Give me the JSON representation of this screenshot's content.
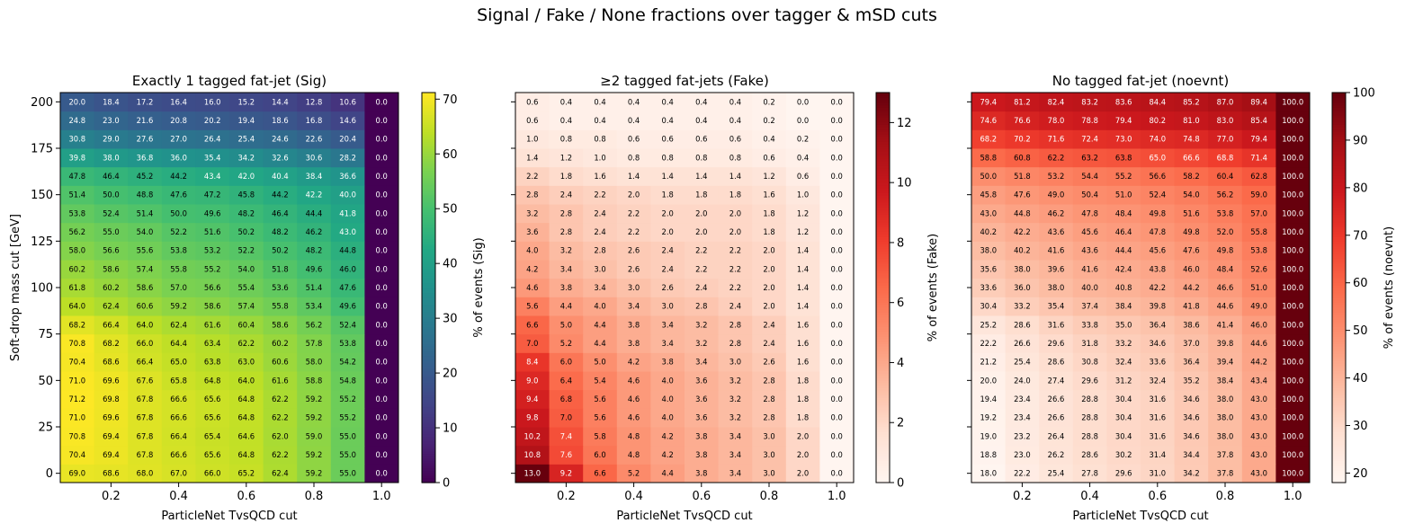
{
  "suptitle": "Signal / Fake / None fractions over tagger & mSD cuts",
  "chart_data": [
    {
      "type": "heatmap",
      "title": "Exactly 1 tagged fat-jet (Sig)",
      "xlabel": "ParticleNet TvsQCD cut",
      "ylabel": "Soft-drop mass cut [GeV]",
      "colorbar_label": "% of events (Sig)",
      "colormap": "viridis",
      "vmin": 0,
      "vmax": 71.2,
      "colorbar_ticks": [
        0,
        10,
        20,
        30,
        40,
        50,
        60,
        70
      ],
      "x": [
        0.1,
        0.2,
        0.3,
        0.4,
        0.5,
        0.6,
        0.7,
        0.8,
        0.9,
        1.0
      ],
      "y": [
        0,
        10,
        20,
        30,
        40,
        50,
        60,
        70,
        80,
        90,
        100,
        110,
        120,
        130,
        140,
        150,
        160,
        170,
        180,
        190,
        200
      ],
      "xticks": [
        "0.2",
        "0.4",
        "0.6",
        "0.8",
        "1.0"
      ],
      "yticks": [
        "0",
        "25",
        "50",
        "75",
        "100",
        "125",
        "150",
        "175",
        "200"
      ],
      "z": [
        [
          69.0,
          68.6,
          68.0,
          67.0,
          66.0,
          65.2,
          62.4,
          59.2,
          55.0,
          0.0
        ],
        [
          70.4,
          69.4,
          67.8,
          66.6,
          65.6,
          64.8,
          62.2,
          59.2,
          55.0,
          0.0
        ],
        [
          70.8,
          69.4,
          67.8,
          66.4,
          65.4,
          64.6,
          62.0,
          59.0,
          55.0,
          0.0
        ],
        [
          71.0,
          69.6,
          67.8,
          66.6,
          65.6,
          64.8,
          62.2,
          59.2,
          55.2,
          0.0
        ],
        [
          71.2,
          69.8,
          67.8,
          66.6,
          65.6,
          64.8,
          62.2,
          59.2,
          55.2,
          0.0
        ],
        [
          71.0,
          69.6,
          67.6,
          65.8,
          64.8,
          64.0,
          61.6,
          58.8,
          54.8,
          0.0
        ],
        [
          70.4,
          68.6,
          66.4,
          65.0,
          63.8,
          63.0,
          60.6,
          58.0,
          54.2,
          0.0
        ],
        [
          70.8,
          68.2,
          66.0,
          64.4,
          63.4,
          62.2,
          60.2,
          57.8,
          53.8,
          0.0
        ],
        [
          68.2,
          66.4,
          64.0,
          62.4,
          61.6,
          60.4,
          58.6,
          56.2,
          52.4,
          0.0
        ],
        [
          64.0,
          62.4,
          60.6,
          59.2,
          58.6,
          57.4,
          55.8,
          53.4,
          49.6,
          0.0
        ],
        [
          61.8,
          60.2,
          58.6,
          57.0,
          56.6,
          55.4,
          53.6,
          51.4,
          47.6,
          0.0
        ],
        [
          60.2,
          58.6,
          57.4,
          55.8,
          55.2,
          54.0,
          51.8,
          49.6,
          46.0,
          0.0
        ],
        [
          58.0,
          56.6,
          55.6,
          53.8,
          53.2,
          52.2,
          50.2,
          48.2,
          44.8,
          0.0
        ],
        [
          56.2,
          55.0,
          54.0,
          52.2,
          51.6,
          50.2,
          48.2,
          46.2,
          43.0,
          0.0
        ],
        [
          53.8,
          52.4,
          51.4,
          50.0,
          49.6,
          48.2,
          46.4,
          44.4,
          41.8,
          0.0
        ],
        [
          51.4,
          50.0,
          48.8,
          47.6,
          47.2,
          45.8,
          44.2,
          42.2,
          40.0,
          0.0
        ],
        [
          47.8,
          46.4,
          45.2,
          44.2,
          43.4,
          42.0,
          40.4,
          38.4,
          36.6,
          0.0
        ],
        [
          39.8,
          38.0,
          36.8,
          36.0,
          35.4,
          34.2,
          32.6,
          30.6,
          28.2,
          0.0
        ],
        [
          30.8,
          29.0,
          27.6,
          27.0,
          26.4,
          25.4,
          24.6,
          22.6,
          20.4,
          0.0
        ],
        [
          24.8,
          23.0,
          21.6,
          20.8,
          20.2,
          19.4,
          18.6,
          16.8,
          14.6,
          0.0
        ],
        [
          20.0,
          18.4,
          17.2,
          16.4,
          16.0,
          15.2,
          14.4,
          12.8,
          10.6,
          0.0
        ]
      ]
    },
    {
      "type": "heatmap",
      "title": "≥2 tagged fat-jets (Fake)",
      "xlabel": "ParticleNet TvsQCD cut",
      "ylabel": "",
      "colorbar_label": "% of events (Fake)",
      "colormap": "Reds",
      "vmin": 0,
      "vmax": 13.0,
      "colorbar_ticks": [
        0,
        2,
        4,
        6,
        8,
        10,
        12
      ],
      "x": [
        0.1,
        0.2,
        0.3,
        0.4,
        0.5,
        0.6,
        0.7,
        0.8,
        0.9,
        1.0
      ],
      "y": [
        0,
        10,
        20,
        30,
        40,
        50,
        60,
        70,
        80,
        90,
        100,
        110,
        120,
        130,
        140,
        150,
        160,
        170,
        180,
        190,
        200
      ],
      "xticks": [
        "0.2",
        "0.4",
        "0.6",
        "0.8",
        "1.0"
      ],
      "yticks": [
        "",
        "",
        "",
        "",
        "",
        "",
        "",
        "",
        ""
      ],
      "z": [
        [
          13.0,
          9.2,
          6.6,
          5.2,
          4.4,
          3.8,
          3.4,
          3.0,
          2.0,
          0.0
        ],
        [
          10.8,
          7.6,
          6.0,
          4.8,
          4.2,
          3.8,
          3.4,
          3.0,
          2.0,
          0.0
        ],
        [
          10.2,
          7.4,
          5.8,
          4.8,
          4.2,
          3.8,
          3.4,
          3.0,
          2.0,
          0.0
        ],
        [
          9.8,
          7.0,
          5.6,
          4.6,
          4.0,
          3.6,
          3.2,
          2.8,
          1.8,
          0.0
        ],
        [
          9.4,
          6.8,
          5.6,
          4.6,
          4.0,
          3.6,
          3.2,
          2.8,
          1.8,
          0.0
        ],
        [
          9.0,
          6.4,
          5.4,
          4.6,
          4.0,
          3.6,
          3.2,
          2.8,
          1.8,
          0.0
        ],
        [
          8.4,
          6.0,
          5.0,
          4.2,
          3.8,
          3.4,
          3.0,
          2.6,
          1.6,
          0.0
        ],
        [
          7.0,
          5.2,
          4.4,
          3.8,
          3.4,
          3.2,
          2.8,
          2.4,
          1.6,
          0.0
        ],
        [
          6.6,
          5.0,
          4.4,
          3.8,
          3.4,
          3.2,
          2.8,
          2.4,
          1.6,
          0.0
        ],
        [
          5.6,
          4.4,
          4.0,
          3.4,
          3.0,
          2.8,
          2.4,
          2.0,
          1.4,
          0.0
        ],
        [
          4.6,
          3.8,
          3.4,
          3.0,
          2.6,
          2.4,
          2.2,
          2.0,
          1.4,
          0.0
        ],
        [
          4.2,
          3.4,
          3.0,
          2.6,
          2.4,
          2.2,
          2.2,
          2.0,
          1.4,
          0.0
        ],
        [
          4.0,
          3.2,
          2.8,
          2.6,
          2.4,
          2.2,
          2.2,
          2.0,
          1.4,
          0.0
        ],
        [
          3.6,
          2.8,
          2.4,
          2.2,
          2.0,
          2.0,
          2.0,
          1.8,
          1.2,
          0.0
        ],
        [
          3.2,
          2.8,
          2.4,
          2.2,
          2.0,
          2.0,
          2.0,
          1.8,
          1.2,
          0.0
        ],
        [
          2.8,
          2.4,
          2.2,
          2.0,
          1.8,
          1.8,
          1.8,
          1.6,
          1.0,
          0.0
        ],
        [
          2.2,
          1.8,
          1.6,
          1.4,
          1.4,
          1.4,
          1.4,
          1.2,
          0.6,
          0.0
        ],
        [
          1.4,
          1.2,
          1.0,
          0.8,
          0.8,
          0.8,
          0.8,
          0.6,
          0.4,
          0.0
        ],
        [
          1.0,
          0.8,
          0.8,
          0.6,
          0.6,
          0.6,
          0.6,
          0.4,
          0.2,
          0.0
        ],
        [
          0.6,
          0.4,
          0.4,
          0.4,
          0.4,
          0.4,
          0.4,
          0.2,
          0.0,
          0.0
        ],
        [
          0.6,
          0.4,
          0.4,
          0.4,
          0.4,
          0.4,
          0.4,
          0.2,
          0.0,
          0.0
        ]
      ]
    },
    {
      "type": "heatmap",
      "title": "No tagged fat-jet (noevnt)",
      "xlabel": "ParticleNet TvsQCD cut",
      "ylabel": "",
      "colorbar_label": "% of events (noevnt)",
      "colormap": "Reds",
      "vmin": 18.0,
      "vmax": 100.0,
      "colorbar_ticks": [
        20,
        30,
        40,
        50,
        60,
        70,
        80,
        90,
        100
      ],
      "x": [
        0.1,
        0.2,
        0.3,
        0.4,
        0.5,
        0.6,
        0.7,
        0.8,
        0.9,
        1.0
      ],
      "y": [
        0,
        10,
        20,
        30,
        40,
        50,
        60,
        70,
        80,
        90,
        100,
        110,
        120,
        130,
        140,
        150,
        160,
        170,
        180,
        190,
        200
      ],
      "xticks": [
        "0.2",
        "0.4",
        "0.6",
        "0.8",
        "1.0"
      ],
      "yticks": [
        "",
        "",
        "",
        "",
        "",
        "",
        "",
        "",
        ""
      ],
      "z": [
        [
          18.0,
          22.2,
          25.4,
          27.8,
          29.6,
          31.0,
          34.2,
          37.8,
          43.0,
          100.0
        ],
        [
          18.8,
          23.0,
          26.2,
          28.6,
          30.2,
          31.4,
          34.4,
          37.8,
          43.0,
          100.0
        ],
        [
          19.0,
          23.2,
          26.4,
          28.8,
          30.4,
          31.6,
          34.6,
          38.0,
          43.0,
          100.0
        ],
        [
          19.2,
          23.4,
          26.6,
          28.8,
          30.4,
          31.6,
          34.6,
          38.0,
          43.0,
          100.0
        ],
        [
          19.4,
          23.4,
          26.6,
          28.8,
          30.4,
          31.6,
          34.6,
          38.0,
          43.0,
          100.0
        ],
        [
          20.0,
          24.0,
          27.4,
          29.6,
          31.2,
          32.4,
          35.2,
          38.4,
          43.4,
          100.0
        ],
        [
          21.2,
          25.4,
          28.6,
          30.8,
          32.4,
          33.6,
          36.4,
          39.4,
          44.2,
          100.0
        ],
        [
          22.2,
          26.6,
          29.6,
          31.8,
          33.2,
          34.6,
          37.0,
          39.8,
          44.6,
          100.0
        ],
        [
          25.2,
          28.6,
          31.6,
          33.8,
          35.0,
          36.4,
          38.6,
          41.4,
          46.0,
          100.0
        ],
        [
          30.4,
          33.2,
          35.4,
          37.4,
          38.4,
          39.8,
          41.8,
          44.6,
          49.0,
          100.0
        ],
        [
          33.6,
          36.0,
          38.0,
          40.0,
          40.8,
          42.2,
          44.2,
          46.6,
          51.0,
          100.0
        ],
        [
          35.6,
          38.0,
          39.6,
          41.6,
          42.4,
          43.8,
          46.0,
          48.4,
          52.6,
          100.0
        ],
        [
          38.0,
          40.2,
          41.6,
          43.6,
          44.4,
          45.6,
          47.6,
          49.8,
          53.8,
          100.0
        ],
        [
          40.2,
          42.2,
          43.6,
          45.6,
          46.4,
          47.8,
          49.8,
          52.0,
          55.8,
          100.0
        ],
        [
          43.0,
          44.8,
          46.2,
          47.8,
          48.4,
          49.8,
          51.6,
          53.8,
          57.0,
          100.0
        ],
        [
          45.8,
          47.6,
          49.0,
          50.4,
          51.0,
          52.4,
          54.0,
          56.2,
          59.0,
          100.0
        ],
        [
          50.0,
          51.8,
          53.2,
          54.4,
          55.2,
          56.6,
          58.2,
          60.4,
          62.8,
          100.0
        ],
        [
          58.8,
          60.8,
          62.2,
          63.2,
          63.8,
          65.0,
          66.6,
          68.8,
          71.4,
          100.0
        ],
        [
          68.2,
          70.2,
          71.6,
          72.4,
          73.0,
          74.0,
          74.8,
          77.0,
          79.4,
          100.0
        ],
        [
          74.6,
          76.6,
          78.0,
          78.8,
          79.4,
          80.2,
          81.0,
          83.0,
          85.4,
          100.0
        ],
        [
          79.4,
          81.2,
          82.4,
          83.2,
          83.6,
          84.4,
          85.2,
          87.0,
          89.4,
          100.0
        ]
      ]
    }
  ]
}
